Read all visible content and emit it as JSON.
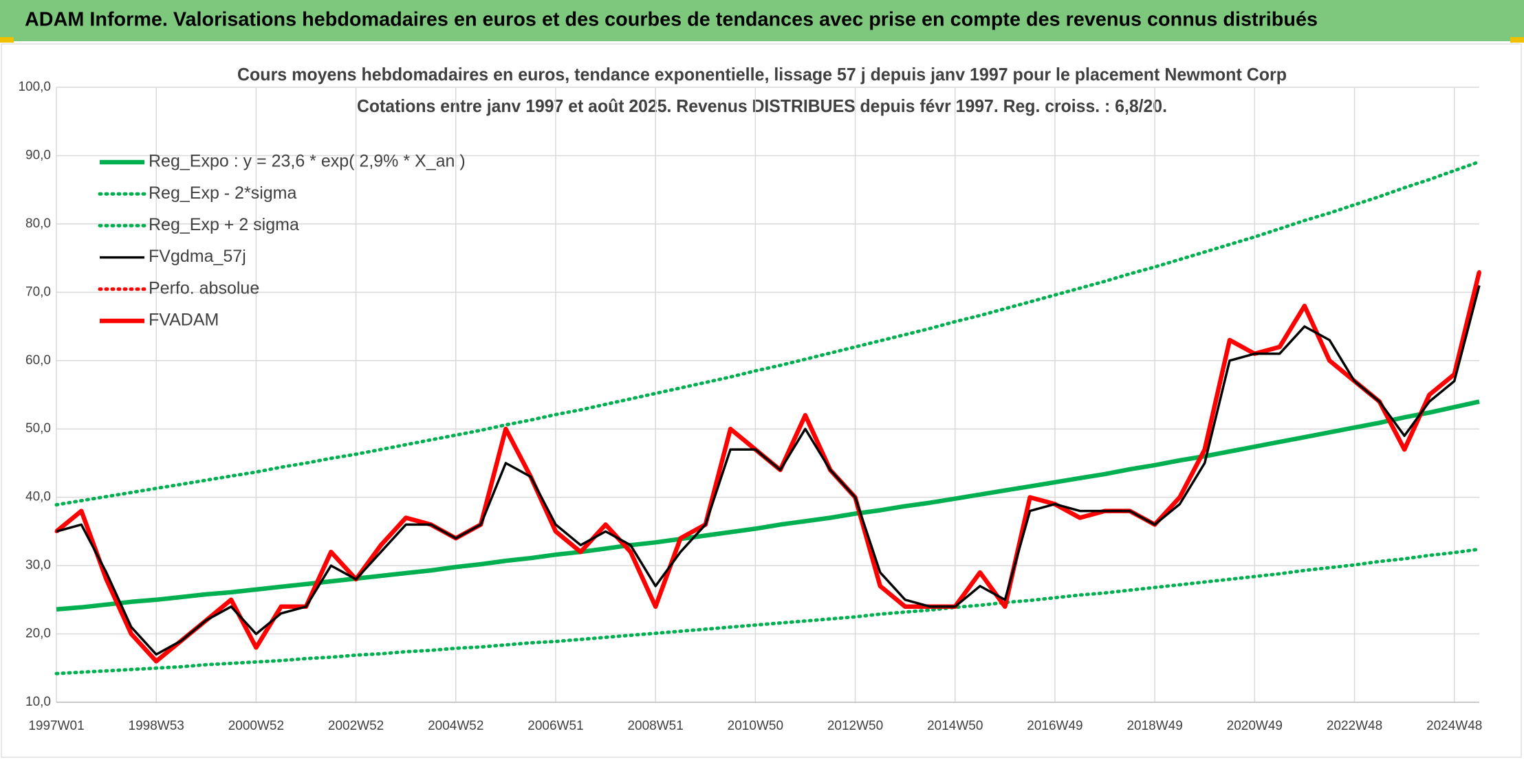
{
  "chart_data": {
    "type": "line",
    "header": "ADAM Informe. Valorisations hebdomadaires en euros et des courbes de tendances avec prise en compte des revenus connus distribués",
    "title": "Cours moyens hebdomadaires en euros, tendance exponentielle, lissage 57 j depuis janv 1997 pour le placement Newmont Corp",
    "subtitle": "Cotations entre janv 1997 et août 2025. Revenus DISTRIBUES depuis févr 1997. Reg. croiss. : 6,8/20.",
    "categories": [
      "1997W01",
      null,
      null,
      null,
      "1998W53",
      null,
      null,
      null,
      "2000W52",
      null,
      null,
      null,
      "2002W52",
      null,
      null,
      null,
      "2004W52",
      null,
      null,
      null,
      "2006W51",
      null,
      null,
      null,
      "2008W51",
      null,
      null,
      null,
      "2010W50",
      null,
      null,
      null,
      "2012W50",
      null,
      null,
      null,
      "2014W50",
      null,
      null,
      null,
      "2016W49",
      null,
      null,
      null,
      "2018W49",
      null,
      null,
      null,
      "2020W49",
      null,
      null,
      null,
      "2022W48",
      null,
      null,
      null,
      "2024W48",
      null
    ],
    "ylim": [
      10,
      100
    ],
    "yticks": [
      {
        "value": 10,
        "label": "10,0"
      },
      {
        "value": 20,
        "label": "20,0"
      },
      {
        "value": 30,
        "label": "30,0"
      },
      {
        "value": 40,
        "label": "40,0"
      },
      {
        "value": 50,
        "label": "50,0"
      },
      {
        "value": 60,
        "label": "60,0"
      },
      {
        "value": 70,
        "label": "70,0"
      },
      {
        "value": 80,
        "label": "80,0"
      },
      {
        "value": 90,
        "label": "90,0"
      },
      {
        "value": 100,
        "label": "100,0"
      }
    ],
    "grid": true,
    "legend": "upper left",
    "series": [
      {
        "name": "Reg_Expo : y = 23,6 * exp( 2,9% *  X_an )",
        "color": "#00b050",
        "style": "solid",
        "values": [
          23.6,
          23.9,
          24.3,
          24.7,
          25.0,
          25.4,
          25.8,
          26.1,
          26.5,
          26.9,
          27.3,
          27.7,
          28.1,
          28.5,
          28.9,
          29.3,
          29.8,
          30.2,
          30.7,
          31.1,
          31.6,
          32.0,
          32.5,
          33.0,
          33.4,
          33.9,
          34.4,
          34.9,
          35.4,
          36.0,
          36.5,
          37.0,
          37.6,
          38.1,
          38.7,
          39.2,
          39.8,
          40.4,
          41.0,
          41.6,
          42.2,
          42.8,
          43.4,
          44.1,
          44.7,
          45.4,
          46.0,
          46.7,
          47.4,
          48.1,
          48.8,
          49.5,
          50.2,
          50.9,
          51.7,
          52.4,
          53.2,
          54.0
        ]
      },
      {
        "name": "Reg_Exp - 2*sigma",
        "color": "#00b050",
        "style": "dotted",
        "values": [
          14.2,
          14.4,
          14.6,
          14.8,
          15.0,
          15.2,
          15.5,
          15.7,
          15.9,
          16.1,
          16.4,
          16.6,
          16.9,
          17.1,
          17.4,
          17.6,
          17.9,
          18.1,
          18.4,
          18.7,
          18.9,
          19.2,
          19.5,
          19.8,
          20.1,
          20.4,
          20.7,
          21.0,
          21.3,
          21.6,
          21.9,
          22.2,
          22.5,
          22.9,
          23.2,
          23.5,
          23.9,
          24.2,
          24.6,
          24.9,
          25.3,
          25.7,
          26.0,
          26.4,
          26.8,
          27.2,
          27.6,
          28.0,
          28.4,
          28.8,
          29.3,
          29.7,
          30.1,
          30.6,
          31.0,
          31.5,
          31.9,
          32.4
        ]
      },
      {
        "name": "Reg_Exp + 2 sigma",
        "color": "#00b050",
        "style": "dotted",
        "values": [
          38.9,
          39.5,
          40.1,
          40.7,
          41.3,
          41.9,
          42.5,
          43.1,
          43.7,
          44.4,
          45.0,
          45.7,
          46.3,
          47.0,
          47.7,
          48.4,
          49.1,
          49.8,
          50.6,
          51.3,
          52.1,
          52.8,
          53.6,
          54.4,
          55.2,
          56.0,
          56.8,
          57.6,
          58.5,
          59.3,
          60.2,
          61.1,
          62.0,
          62.9,
          63.8,
          64.7,
          65.7,
          66.6,
          67.6,
          68.6,
          69.6,
          70.6,
          71.6,
          72.7,
          73.7,
          74.8,
          75.9,
          77.0,
          78.1,
          79.3,
          80.5,
          81.6,
          82.8,
          84.0,
          85.3,
          86.5,
          87.8,
          89.1
        ]
      },
      {
        "name": "FVgdma_57j",
        "color": "#000000",
        "style": "solid",
        "values": [
          35,
          36,
          29,
          21,
          17,
          19,
          22,
          24,
          20,
          23,
          24,
          30,
          28,
          32,
          36,
          36,
          34,
          36,
          45,
          43,
          36,
          33,
          35,
          33,
          27,
          32,
          36,
          47,
          47,
          44,
          50,
          44,
          40,
          29,
          25,
          24,
          24,
          27,
          25,
          38,
          39,
          38,
          38,
          38,
          36,
          39,
          45,
          60,
          61,
          61,
          65,
          63,
          57,
          54,
          49,
          54,
          57,
          71
        ]
      },
      {
        "name": "Perfo. absolue",
        "color": "#ff0000",
        "style": "dotted",
        "values": [
          35,
          38,
          28,
          20,
          16,
          19,
          22,
          25,
          18,
          24,
          24,
          32,
          28,
          33,
          37,
          36,
          34,
          36,
          50,
          43,
          35,
          32,
          36,
          32,
          24,
          34,
          36,
          50,
          47,
          44,
          52,
          44,
          40,
          27,
          24,
          24,
          24,
          29,
          24,
          40,
          39,
          37,
          38,
          38,
          36,
          40,
          47,
          63,
          61,
          62,
          68,
          60,
          57,
          54,
          47,
          55,
          58,
          73
        ]
      },
      {
        "name": "FVADAM",
        "color": "#ff0000",
        "style": "solid",
        "values": [
          35,
          38,
          28,
          20,
          16,
          19,
          22,
          25,
          18,
          24,
          24,
          32,
          28,
          33,
          37,
          36,
          34,
          36,
          50,
          43,
          35,
          32,
          36,
          32,
          24,
          34,
          36,
          50,
          47,
          44,
          52,
          44,
          40,
          27,
          24,
          24,
          24,
          29,
          24,
          40,
          39,
          37,
          38,
          38,
          36,
          40,
          47,
          63,
          61,
          62,
          68,
          60,
          57,
          54,
          47,
          55,
          58,
          73
        ]
      }
    ]
  }
}
